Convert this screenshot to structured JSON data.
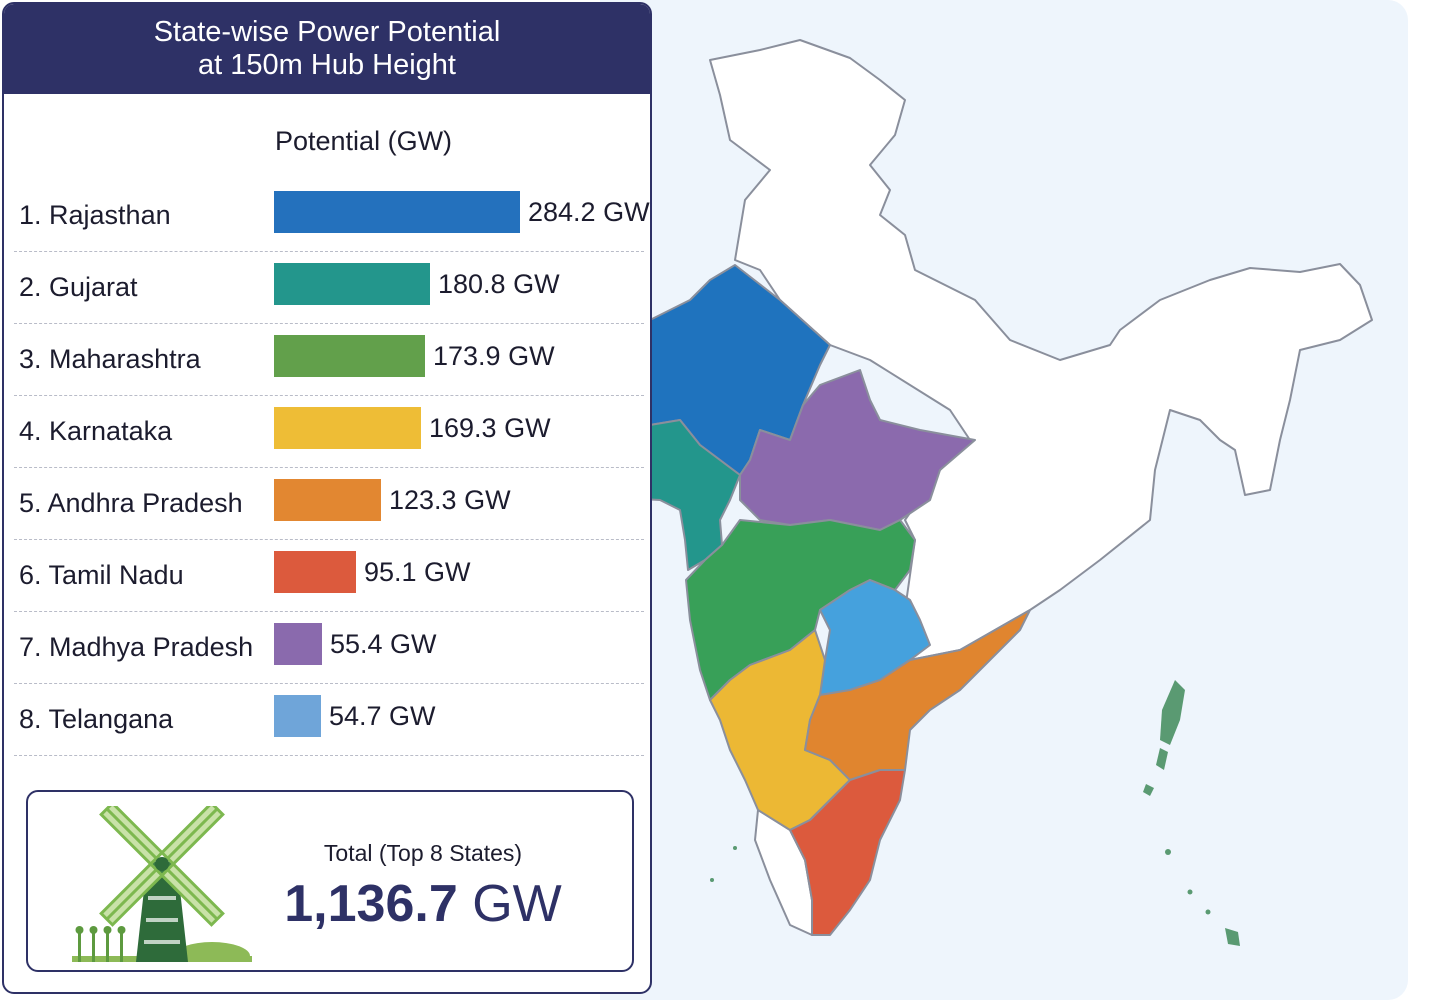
{
  "header": {
    "title_line1": "State-wise Power Potential",
    "title_line2": "at 150m Hub Height"
  },
  "chart_data": {
    "type": "bar",
    "orientation": "horizontal",
    "ylabel": "Potential (GW)",
    "categories": [
      "1. Rajasthan",
      "2. Gujarat",
      "3. Maharashtra",
      "4. Karnataka",
      "5. Andhra Pradesh",
      "6. Tamil Nadu",
      "7. Madhya Pradesh",
      "8. Telangana"
    ],
    "values": [
      284.2,
      180.8,
      173.9,
      169.3,
      123.3,
      95.1,
      55.4,
      54.7
    ],
    "value_labels": [
      "284.2 GW",
      "180.8 GW",
      "173.9 GW",
      "169.3 GW",
      "123.3 GW",
      "95.1 GW",
      "55.4 GW",
      "54.7 GW"
    ],
    "colors": [
      "#2471bd",
      "#23968c",
      "#62a04b",
      "#eebd36",
      "#e28731",
      "#dc5a3d",
      "#8a6aad",
      "#6fa5d9"
    ],
    "xlim": [
      0,
      284.2
    ]
  },
  "total": {
    "label": "Total (Top 8 States)",
    "value_number": "1,136.7",
    "value_unit": "GW"
  },
  "map": {
    "highlight_colors": {
      "rajasthan": "#1f73be",
      "gujarat": "#23968c",
      "maharashtra": "#38a058",
      "karnataka": "#ecb834",
      "andhra_pradesh": "#e0852f",
      "tamil_nadu": "#dc5a3d",
      "madhya_pradesh": "#8b6aad",
      "telangana": "#45a1dd",
      "other_states": "#ffffff",
      "islands": "#5a9a72"
    }
  }
}
